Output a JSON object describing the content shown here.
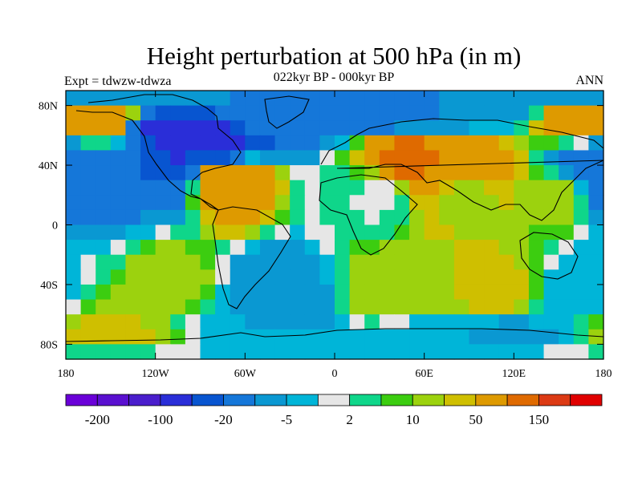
{
  "chart_data": {
    "type": "heatmap",
    "title": "Height perturbation at 500 hPa (in m)",
    "subtitle": "022kyr BP - 000kyr BP",
    "left_label": "Expt = tdwzw-tdwza",
    "right_label": "ANN",
    "x_axis": {
      "range": [
        -180,
        180
      ],
      "ticks": [
        {
          "value": -180,
          "label": "180"
        },
        {
          "value": -120,
          "label": "120W"
        },
        {
          "value": -60,
          "label": "60W"
        },
        {
          "value": 0,
          "label": "0"
        },
        {
          "value": 60,
          "label": "60E"
        },
        {
          "value": 120,
          "label": "120E"
        },
        {
          "value": 180,
          "label": "180"
        }
      ]
    },
    "y_axis": {
      "range": [
        -90,
        90
      ],
      "ticks": [
        {
          "value": 80,
          "label": "80N"
        },
        {
          "value": 40,
          "label": "40N"
        },
        {
          "value": 0,
          "label": "0"
        },
        {
          "value": -40,
          "label": "40S"
        },
        {
          "value": -80,
          "label": "80S"
        }
      ]
    },
    "colorbar": {
      "colors": [
        "#6a00d8",
        "#5a10d0",
        "#4a1ecc",
        "#2a2ed8",
        "#0855d0",
        "#1577d9",
        "#0a98d2",
        "#00b5d8",
        "#e6e6e6",
        "#0fd68a",
        "#3ccd10",
        "#9cd20e",
        "#cfbf00",
        "#de9a00",
        "#df6a00",
        "#dc3a14",
        "#e00000"
      ],
      "labels": [
        {
          "text": "-200",
          "boundary": 1
        },
        {
          "text": "-100",
          "boundary": 3
        },
        {
          "text": "-20",
          "boundary": 5
        },
        {
          "text": "-5",
          "boundary": 7
        },
        {
          "text": "2",
          "boundary": 9
        },
        {
          "text": "10",
          "boundary": 11
        },
        {
          "text": "50",
          "boundary": 13
        },
        {
          "text": "150",
          "boundary": 15
        }
      ]
    },
    "field": [
      {
        "lon": 165,
        "lat": 70,
        "value": 30
      },
      {
        "lon": -165,
        "lat": 70,
        "value": 40
      },
      {
        "lon": -100,
        "lat": 65,
        "value": -140
      },
      {
        "lon": -80,
        "lat": 55,
        "value": -120
      },
      {
        "lon": -50,
        "lat": 75,
        "value": -20
      },
      {
        "lon": 20,
        "lat": 75,
        "value": -30
      },
      {
        "lon": 60,
        "lat": 75,
        "value": -20
      },
      {
        "lon": 110,
        "lat": 80,
        "value": -20
      },
      {
        "lon": 50,
        "lat": 45,
        "value": 60
      },
      {
        "lon": 90,
        "lat": 40,
        "value": 40
      },
      {
        "lon": -70,
        "lat": 32,
        "value": 50
      },
      {
        "lon": -175,
        "lat": 40,
        "value": -40
      },
      {
        "lon": 175,
        "lat": 40,
        "value": -40
      },
      {
        "lon": 150,
        "lat": 20,
        "value": 8
      },
      {
        "lon": 90,
        "lat": 20,
        "value": 6
      },
      {
        "lon": 30,
        "lat": 20,
        "value": -3
      },
      {
        "lon": -110,
        "lat": -40,
        "value": 8
      },
      {
        "lon": -40,
        "lat": -50,
        "value": -20
      },
      {
        "lon": 40,
        "lat": -45,
        "value": 10
      },
      {
        "lon": 110,
        "lat": -45,
        "value": 15
      },
      {
        "lon": 160,
        "lat": -45,
        "value": -8
      },
      {
        "lon": -150,
        "lat": -75,
        "value": 12
      },
      {
        "lon": -60,
        "lat": -78,
        "value": -8
      },
      {
        "lon": 60,
        "lat": -78,
        "value": -8
      },
      {
        "lon": 120,
        "lat": -75,
        "value": -12
      }
    ]
  }
}
